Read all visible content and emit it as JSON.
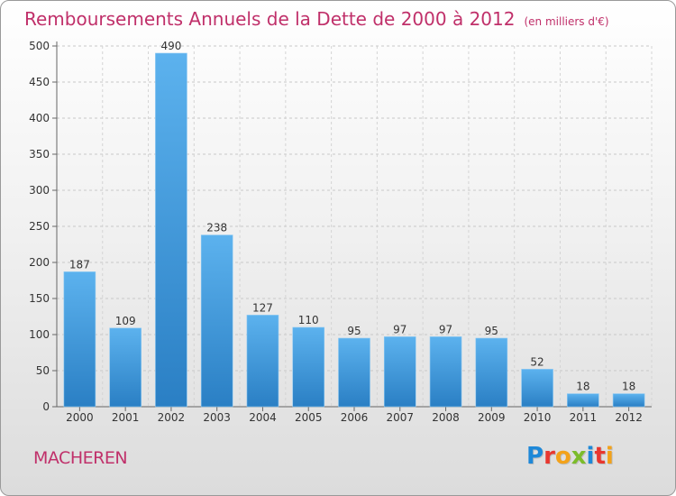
{
  "header": {
    "title": "Remboursements Annuels de la Dette de 2000 à 2012",
    "subtitle": "(en milliers d'€)"
  },
  "footer": {
    "commune": "MACHEREN",
    "logo_letters": [
      "P",
      "r",
      "o",
      "x",
      "i",
      "t",
      "i"
    ],
    "logo_colors": [
      "#1e88d8",
      "#e8372f",
      "#f3a21a",
      "#7cbc2a",
      "#1e88d8",
      "#e8372f",
      "#f3a21a"
    ]
  },
  "chart_data": {
    "type": "bar",
    "title": "Remboursements Annuels de la Dette de 2000 à 2012",
    "subtitle": "(en milliers d'€)",
    "categories": [
      "2000",
      "2001",
      "2002",
      "2003",
      "2004",
      "2005",
      "2006",
      "2007",
      "2008",
      "2009",
      "2010",
      "2011",
      "2012"
    ],
    "values": [
      187,
      109,
      490,
      238,
      127,
      110,
      95,
      97,
      97,
      95,
      52,
      18,
      18
    ],
    "ylim": [
      0,
      500
    ],
    "yticks": [
      0,
      50,
      100,
      150,
      200,
      250,
      300,
      350,
      400,
      450,
      500
    ],
    "grid": true,
    "bar_color": "#3a98dc",
    "title_color": "#c0306a"
  }
}
